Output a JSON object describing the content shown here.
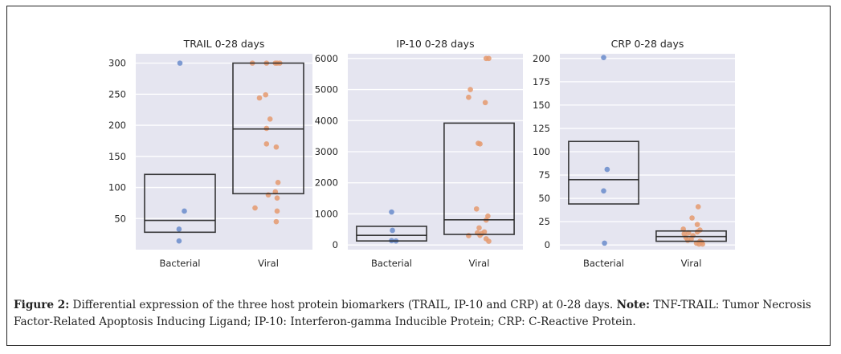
{
  "caption": {
    "label": "Figure 2:",
    "text": " Differential expression of the three host protein biomarkers (TRAIL, IP-10 and CRP) at 0-28 days. ",
    "note_label": "Note:",
    "note_text": " TNF-TRAIL: Tumor Necrosis Factor-Related Apoptosis Inducing Ligand; IP-10: Interferon-gamma Inducible Protein; CRP: C-Reactive Protein."
  },
  "colors": {
    "panel_bg": "#e5e5f0",
    "grid": "#ffffff",
    "bacterial": "#6a8ccb",
    "viral": "#e59a6f",
    "box": "#222222"
  },
  "chart_data": [
    {
      "type": "box+strip",
      "title": "TRAIL 0-28 days",
      "categories": [
        "Bacterial",
        "Viral"
      ],
      "yticks": [
        50,
        100,
        150,
        200,
        250,
        300
      ],
      "ylim": [
        0,
        315
      ],
      "grid": true,
      "boxes": [
        {
          "category": "Bacterial",
          "q1": 28,
          "median": 47,
          "q3": 121
        },
        {
          "category": "Viral",
          "q1": 90,
          "median": 194,
          "q3": 300
        }
      ],
      "points": [
        {
          "category": "Bacterial",
          "values": [
            300,
            62,
            33,
            14
          ],
          "jitter": [
            0.0,
            0.05,
            -0.01,
            -0.01
          ]
        },
        {
          "category": "Viral",
          "values": [
            300,
            300,
            300,
            300,
            300,
            249,
            244,
            210,
            195,
            170,
            165,
            108,
            93,
            88,
            83,
            67,
            62,
            45
          ],
          "jitter": [
            -0.18,
            -0.02,
            0.08,
            0.1,
            0.13,
            -0.03,
            -0.1,
            0.02,
            -0.02,
            -0.02,
            0.09,
            0.11,
            0.08,
            0.0,
            0.1,
            -0.15,
            0.1,
            0.09
          ]
        }
      ]
    },
    {
      "type": "box+strip",
      "title": "IP-10 0-28 days",
      "categories": [
        "Bacterial",
        "Viral"
      ],
      "yticks": [
        0,
        1000,
        2000,
        3000,
        4000,
        5000,
        6000
      ],
      "ylim": [
        -150,
        6150
      ],
      "grid": true,
      "boxes": [
        {
          "category": "Bacterial",
          "q1": 130,
          "median": 310,
          "q3": 600
        },
        {
          "category": "Viral",
          "q1": 340,
          "median": 810,
          "q3": 3920
        }
      ],
      "points": [
        {
          "category": "Bacterial",
          "values": [
            1060,
            470,
            140,
            130
          ],
          "jitter": [
            0.0,
            0.01,
            0.0,
            0.05
          ]
        },
        {
          "category": "Viral",
          "values": [
            6000,
            6000,
            5000,
            4750,
            4580,
            3270,
            3250,
            1160,
            930,
            800,
            550,
            420,
            390,
            370,
            310,
            300,
            200,
            120
          ],
          "jitter": [
            0.08,
            0.11,
            -0.1,
            -0.12,
            0.07,
            -0.01,
            0.01,
            -0.03,
            0.1,
            0.08,
            0.0,
            0.06,
            -0.02,
            0.03,
            0.01,
            -0.12,
            0.08,
            0.11
          ]
        }
      ]
    },
    {
      "type": "box+strip",
      "title": "CRP 0-28 days",
      "categories": [
        "Bacterial",
        "Viral"
      ],
      "yticks": [
        0,
        25,
        50,
        75,
        100,
        125,
        150,
        175,
        200
      ],
      "ylim": [
        -5,
        205
      ],
      "grid": true,
      "boxes": [
        {
          "category": "Bacterial",
          "q1": 44,
          "median": 70,
          "q3": 111
        },
        {
          "category": "Viral",
          "q1": 4,
          "median": 9,
          "q3": 15
        }
      ],
      "points": [
        {
          "category": "Bacterial",
          "values": [
            201,
            81,
            58,
            2
          ],
          "jitter": [
            0.0,
            0.04,
            0.0,
            0.01
          ]
        },
        {
          "category": "Viral",
          "values": [
            41,
            29,
            22,
            17,
            16,
            14,
            13,
            12,
            10,
            8,
            6,
            5,
            4,
            3,
            2,
            1,
            1
          ],
          "jitter": [
            0.08,
            0.01,
            0.07,
            -0.09,
            0.1,
            0.07,
            -0.03,
            -0.08,
            0.02,
            -0.06,
            0.0,
            -0.04,
            0.1,
            0.12,
            0.06,
            0.09,
            0.13
          ]
        }
      ]
    }
  ]
}
